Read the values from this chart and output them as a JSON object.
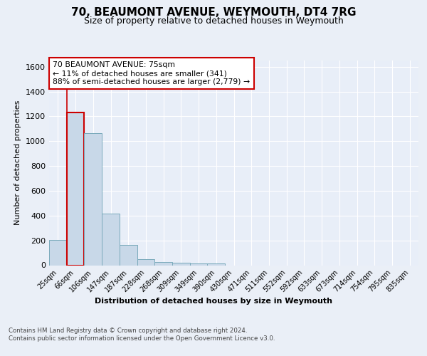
{
  "title": "70, BEAUMONT AVENUE, WEYMOUTH, DT4 7RG",
  "subtitle": "Size of property relative to detached houses in Weymouth",
  "xlabel": "Distribution of detached houses by size in Weymouth",
  "ylabel": "Number of detached properties",
  "categories": [
    "25sqm",
    "66sqm",
    "106sqm",
    "147sqm",
    "187sqm",
    "228sqm",
    "268sqm",
    "309sqm",
    "349sqm",
    "390sqm",
    "430sqm",
    "471sqm",
    "511sqm",
    "552sqm",
    "592sqm",
    "633sqm",
    "673sqm",
    "714sqm",
    "754sqm",
    "795sqm",
    "835sqm"
  ],
  "values": [
    205,
    1230,
    1065,
    415,
    165,
    50,
    25,
    18,
    15,
    15,
    0,
    0,
    0,
    0,
    0,
    0,
    0,
    0,
    0,
    0,
    0
  ],
  "bar_color": "#c8d8e8",
  "bar_edge_color": "#7aaabb",
  "highlight_bar_index": 1,
  "highlight_bar_edge_color": "#cc0000",
  "annotation_box_text": "70 BEAUMONT AVENUE: 75sqm\n← 11% of detached houses are smaller (341)\n88% of semi-detached houses are larger (2,779) →",
  "ylim": [
    0,
    1650
  ],
  "yticks": [
    0,
    200,
    400,
    600,
    800,
    1000,
    1200,
    1400,
    1600
  ],
  "background_color": "#eaeff7",
  "plot_background_color": "#e8eef8",
  "grid_color": "#ffffff",
  "footer_text": "Contains HM Land Registry data © Crown copyright and database right 2024.\nContains public sector information licensed under the Open Government Licence v3.0.",
  "property_line_x": 1.0,
  "title_fontsize": 11,
  "subtitle_fontsize": 9
}
